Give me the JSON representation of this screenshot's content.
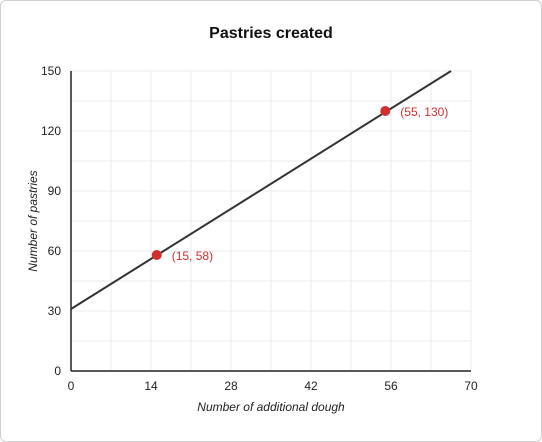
{
  "chart_data": {
    "type": "line",
    "title": "Pastries created",
    "xlabel": "Number of additional dough",
    "ylabel": "Number of pastries",
    "xlim": [
      0,
      70
    ],
    "ylim": [
      0,
      150
    ],
    "x_ticks": [
      0,
      14,
      28,
      42,
      56,
      70
    ],
    "y_ticks": [
      0,
      30,
      60,
      90,
      120,
      150
    ],
    "x_minor_step": 7,
    "y_minor_step": 15,
    "grid": true,
    "series": [
      {
        "x": [
          0,
          66.5
        ],
        "y": [
          31,
          150
        ],
        "color": "#333333"
      }
    ],
    "points": [
      {
        "x": 15,
        "y": 58,
        "label": "(15, 58)",
        "color": "#d32f2f"
      },
      {
        "x": 55,
        "y": 130,
        "label": "(55, 130)",
        "color": "#d32f2f"
      }
    ]
  }
}
